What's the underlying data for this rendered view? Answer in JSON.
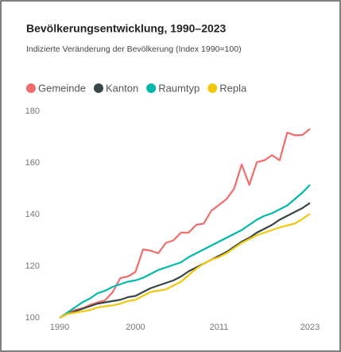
{
  "chart_data": {
    "type": "line",
    "title": "Bevölkerungsentwicklung, 1990–2023",
    "subtitle": "Indizierte Veränderung der Bevölkerung (Index 1990=100)",
    "x": [
      1990,
      1991,
      1992,
      1993,
      1994,
      1995,
      1996,
      1997,
      1998,
      1999,
      2000,
      2001,
      2002,
      2003,
      2004,
      2005,
      2006,
      2007,
      2008,
      2009,
      2010,
      2011,
      2012,
      2013,
      2014,
      2015,
      2016,
      2017,
      2018,
      2019,
      2020,
      2021,
      2022,
      2023
    ],
    "series": [
      {
        "name": "Gemeinde",
        "color": "#f16c6a",
        "values": [
          100,
          101.5,
          103,
          103.7,
          105,
          106,
          106.8,
          110,
          115.4,
          116,
          117.8,
          126.5,
          126,
          125,
          129,
          130,
          133,
          133,
          136,
          136.5,
          141.5,
          143.7,
          146,
          150,
          159.4,
          151.5,
          160.3,
          161,
          163,
          161,
          171.7,
          170.7,
          170.8,
          173.2
        ]
      },
      {
        "name": "Kanton",
        "color": "#374649",
        "values": [
          100,
          101.5,
          102.5,
          103.5,
          104.5,
          105.5,
          106,
          106.5,
          107,
          108,
          108.5,
          110,
          111.5,
          112.5,
          113.5,
          114.5,
          116,
          118,
          119.5,
          121,
          122.5,
          124,
          125.5,
          127.5,
          129.5,
          131,
          133,
          134.5,
          136,
          138,
          139.5,
          141,
          142.5,
          144.5
        ]
      },
      {
        "name": "Raumtyp",
        "color": "#01b8aa",
        "values": [
          100,
          102,
          104,
          106,
          107.5,
          109.5,
          110.5,
          112,
          113,
          114,
          114.5,
          115.5,
          117,
          118.5,
          119.5,
          120.5,
          121.5,
          123.5,
          125,
          126.5,
          128,
          129.5,
          131,
          132.5,
          134,
          136,
          138,
          139.5,
          140.5,
          142,
          143.5,
          146,
          148.5,
          151.5
        ]
      },
      {
        "name": "Repla",
        "color": "#f2c80f",
        "values": [
          100,
          101.5,
          102,
          102.5,
          103,
          104,
          104.5,
          104.8,
          105.5,
          106.5,
          107,
          108.5,
          110,
          110.5,
          111,
          112.5,
          114,
          116.5,
          119,
          121,
          122.5,
          123.5,
          125,
          127,
          129,
          130.5,
          132,
          133,
          134,
          135,
          135.8,
          136.5,
          138.3,
          140.3
        ]
      }
    ],
    "xlim": [
      1990,
      2023
    ],
    "xticks": [
      1990,
      2000,
      2011,
      2023
    ],
    "ylim": [
      100,
      180
    ],
    "yticks": [
      100,
      120,
      140,
      160,
      180
    ],
    "grid": false,
    "legend": "top-left"
  }
}
